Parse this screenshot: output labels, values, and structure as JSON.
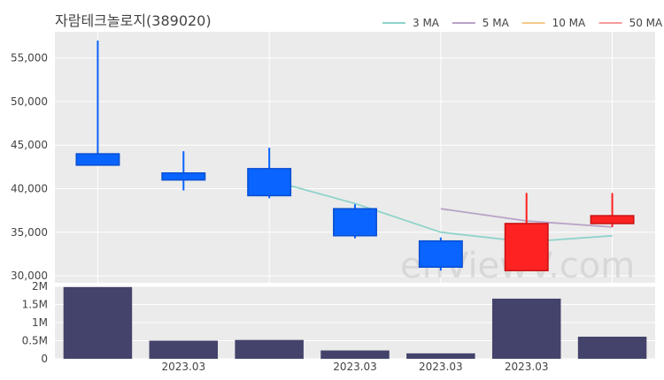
{
  "chart_data": [
    {
      "type": "candlestick",
      "title": "자람테크놀로지(389020)",
      "legend": {
        "placement": "top-right",
        "items": [
          {
            "label": "3 MA",
            "color": "#8fd3cc"
          },
          {
            "label": "5 MA",
            "color": "#b8a2c6"
          },
          {
            "label": "10 MA",
            "color": "#f3c98a"
          },
          {
            "label": "50 MA",
            "color": "#f59b9b"
          }
        ]
      },
      "ylim": [
        29200,
        58000
      ],
      "y_ticks": [
        {
          "value": 30000,
          "label": "30,000"
        },
        {
          "value": 35000,
          "label": "35,000"
        },
        {
          "value": 40000,
          "label": "40,000"
        },
        {
          "value": 45000,
          "label": "45,000"
        },
        {
          "value": 50000,
          "label": "50,000"
        },
        {
          "value": 55000,
          "label": "55,000"
        }
      ],
      "grid": true,
      "colors": {
        "up": "#ff2222",
        "down": "#0a64ff",
        "background": "#ebebeb"
      },
      "candles": [
        {
          "open": 44000,
          "high": 57000,
          "low": 42700,
          "close": 42700,
          "direction": "down"
        },
        {
          "open": 41800,
          "high": 44300,
          "low": 39800,
          "close": 41000,
          "direction": "down"
        },
        {
          "open": 42300,
          "high": 44700,
          "low": 38900,
          "close": 39200,
          "direction": "down"
        },
        {
          "open": 37700,
          "high": 38200,
          "low": 34300,
          "close": 34600,
          "direction": "down"
        },
        {
          "open": 34000,
          "high": 34400,
          "low": 30600,
          "close": 31000,
          "direction": "down"
        },
        {
          "open": 30600,
          "high": 39500,
          "low": 30600,
          "close": 36000,
          "direction": "up"
        },
        {
          "open": 36000,
          "high": 39500,
          "low": 35600,
          "close": 36900,
          "direction": "up"
        }
      ],
      "moving_averages": [
        {
          "name": "3 MA",
          "color": "#8fd3cc",
          "values": [
            null,
            null,
            41000,
            38300,
            35000,
            33900,
            34600
          ]
        },
        {
          "name": "5 MA",
          "color": "#b8a2c6",
          "values": [
            null,
            null,
            null,
            null,
            37700,
            36300,
            35600
          ]
        }
      ]
    },
    {
      "type": "bar",
      "ylim": [
        0,
        2000000
      ],
      "y_ticks": [
        {
          "value": 0,
          "label": "0"
        },
        {
          "value": 500000,
          "label": "0.5M"
        },
        {
          "value": 1000000,
          "label": "1M"
        },
        {
          "value": 1500000,
          "label": "1.5M"
        },
        {
          "value": 2000000,
          "label": "2M"
        }
      ],
      "x_tick_labels": [
        {
          "index": 1,
          "label": "2023.03"
        },
        {
          "index": 3,
          "label": "2023.03"
        },
        {
          "index": 4,
          "label": "2023.03"
        },
        {
          "index": 5,
          "label": "2023.03"
        }
      ],
      "color": "#43436b",
      "values": [
        1980000,
        500000,
        520000,
        230000,
        150000,
        1660000,
        610000
      ]
    }
  ],
  "watermark": "enViewV.com"
}
